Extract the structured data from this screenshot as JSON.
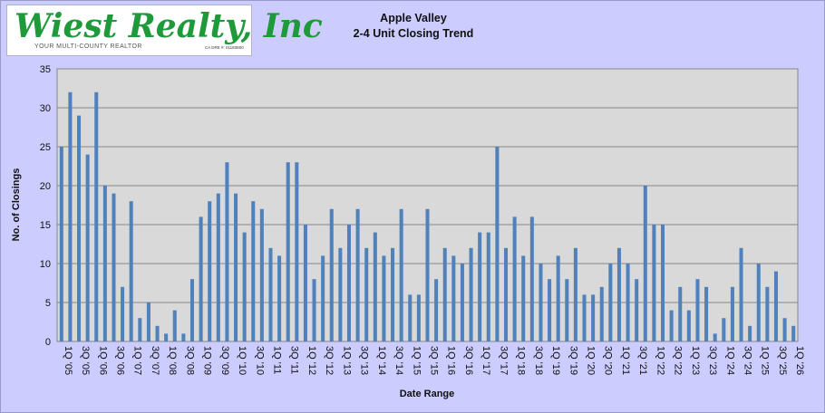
{
  "logo": {
    "brand": "Wiest Realty, Inc",
    "tagline": "YOUR MULTI-COUNTY REALTOR",
    "license": "CA DRE #: 01183800"
  },
  "chart_data": {
    "type": "bar",
    "title": "Apple Valley",
    "subtitle": "2-4 Unit Closing Trend",
    "xlabel": "Date Range",
    "ylabel": "No. of Closings",
    "ylim": [
      0,
      35
    ],
    "yticks": [
      0,
      5,
      10,
      15,
      20,
      25,
      30,
      35
    ],
    "grid": true,
    "bar_color": "#4f81bd",
    "plot_background": "#d9d9d9",
    "categories": [
      "1Q '05",
      "2Q '05",
      "3Q '05",
      "4Q '05",
      "1Q '06",
      "2Q '06",
      "3Q '06",
      "4Q '06",
      "1Q '07",
      "2Q '07",
      "3Q '07",
      "4Q '07",
      "1Q '08",
      "2Q '08",
      "3Q '08",
      "4Q '08",
      "1Q '09",
      "2Q '09",
      "3Q '09",
      "4Q '09",
      "1Q '10",
      "2Q '10",
      "3Q '10",
      "4Q '10",
      "1Q '11",
      "2Q '11",
      "3Q '11",
      "4Q '11",
      "1Q '12",
      "2Q '12",
      "3Q '12",
      "4Q '12",
      "1Q '13",
      "2Q '13",
      "3Q '13",
      "4Q '13",
      "1Q '14",
      "2Q '14",
      "3Q '14",
      "4Q '14",
      "1Q '15",
      "2Q '15",
      "3Q '15",
      "4Q '15",
      "1Q '16",
      "2Q '16",
      "3Q '16",
      "4Q '16",
      "1Q '17",
      "2Q '17",
      "3Q '17",
      "4Q '17",
      "1Q '18",
      "2Q '18",
      "3Q '18",
      "4Q '18",
      "1Q '19",
      "2Q '19",
      "3Q '19",
      "4Q '19",
      "1Q '20",
      "2Q '20",
      "3Q '20",
      "4Q '20",
      "1Q '21",
      "2Q '21",
      "3Q '21",
      "4Q '21",
      "1Q '22",
      "2Q '22",
      "3Q '22",
      "4Q '22",
      "1Q '23",
      "2Q '23",
      "3Q '23",
      "4Q '23",
      "1Q '24",
      "2Q '24",
      "3Q '24",
      "4Q '24",
      "1Q '25",
      "2Q '25",
      "3Q '25",
      "4Q '25",
      "1Q '26"
    ],
    "visible_tick_labels": [
      "1Q '05",
      "3Q '05",
      "1Q '06",
      "3Q '06",
      "1Q '07",
      "3Q '07",
      "1Q '08",
      "3Q '08",
      "1Q '09",
      "3Q '09",
      "1Q '10",
      "3Q '10",
      "1Q '11",
      "3Q '11",
      "1Q '12",
      "3Q '12",
      "1Q '13",
      "3Q '13",
      "1Q '14",
      "3Q '14",
      "1Q '15",
      "3Q '15",
      "1Q '16",
      "3Q '16",
      "1Q '17",
      "3Q '17",
      "1Q '18",
      "3Q '18",
      "1Q '19",
      "3Q '19",
      "1Q '20",
      "3Q '20",
      "1Q '21",
      "3Q '21",
      "1Q '22",
      "3Q '22",
      "1Q '23",
      "3Q '23",
      "1Q '24",
      "3Q '24",
      "1Q '25",
      "3Q '25",
      "1Q '26"
    ],
    "values": [
      25,
      32,
      29,
      24,
      32,
      20,
      19,
      7,
      18,
      3,
      5,
      2,
      1,
      4,
      1,
      8,
      16,
      18,
      19,
      23,
      19,
      14,
      18,
      17,
      12,
      11,
      23,
      23,
      15,
      8,
      11,
      17,
      12,
      15,
      17,
      12,
      14,
      11,
      12,
      17,
      6,
      6,
      17,
      8,
      12,
      11,
      10,
      12,
      14,
      14,
      25,
      12,
      16,
      11,
      16,
      10,
      8,
      11,
      8,
      12,
      6,
      6,
      7,
      10,
      12,
      10,
      8,
      20,
      15,
      15,
      4,
      7,
      4,
      8,
      7,
      1,
      3,
      7,
      12,
      2,
      10,
      7,
      9,
      3,
      2
    ]
  }
}
